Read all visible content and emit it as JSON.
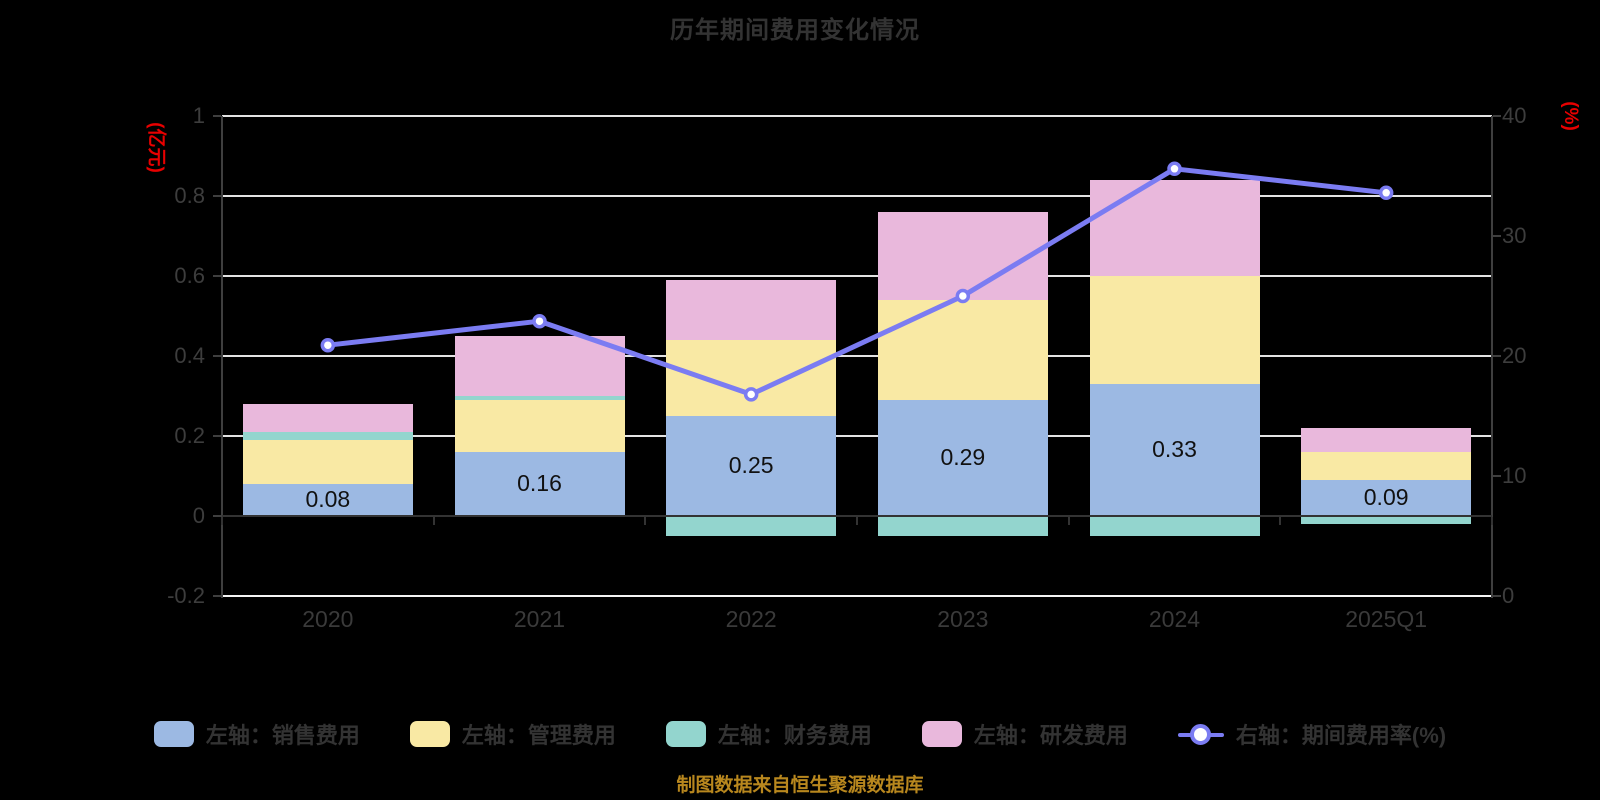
{
  "title": "历年期间费用变化情况",
  "footer": "制图数据来自恒生聚源数据库",
  "left_axis": {
    "name": "(亿元)",
    "min": -0.2,
    "max": 1,
    "ticks": [
      {
        "value": 1,
        "label": "1"
      },
      {
        "value": 0.8,
        "label": "0.8"
      },
      {
        "value": 0.6,
        "label": "0.6"
      },
      {
        "value": 0.4,
        "label": "0.4"
      },
      {
        "value": 0.2,
        "label": "0.2"
      },
      {
        "value": 0,
        "label": "0"
      },
      {
        "value": -0.2,
        "label": "-0.2"
      }
    ]
  },
  "right_axis": {
    "name": "(%)",
    "min": 0,
    "max": 40,
    "ticks": [
      {
        "value": 40,
        "label": "40"
      },
      {
        "value": 30,
        "label": "30"
      },
      {
        "value": 20,
        "label": "20"
      },
      {
        "value": 10,
        "label": "10"
      },
      {
        "value": 0,
        "label": "0"
      }
    ]
  },
  "chart_data": {
    "type": "stacked-bar+line",
    "categories": [
      "2020",
      "2021",
      "2022",
      "2023",
      "2024",
      "2025Q1"
    ],
    "series": [
      {
        "name": "左轴：销售费用",
        "type": "bar",
        "color": "#9cb9e3",
        "labeled": true,
        "values": [
          0.08,
          0.16,
          0.25,
          0.29,
          0.33,
          0.09
        ]
      },
      {
        "name": "左轴：管理费用",
        "type": "bar",
        "color": "#f9e9a4",
        "labeled": false,
        "values": [
          0.11,
          0.13,
          0.19,
          0.25,
          0.27,
          0.07
        ]
      },
      {
        "name": "左轴：财务费用",
        "type": "bar",
        "color": "#93d5ce",
        "labeled": false,
        "values": [
          0.02,
          0.01,
          -0.05,
          -0.05,
          -0.05,
          -0.02
        ]
      },
      {
        "name": "左轴：研发费用",
        "type": "bar",
        "color": "#e9b8dc",
        "labeled": false,
        "values": [
          0.07,
          0.15,
          0.15,
          0.22,
          0.24,
          0.06
        ]
      },
      {
        "name": "右轴：期间费用率(%)",
        "type": "line",
        "color": "#7b7cf2",
        "axis": "right",
        "values": [
          20.9,
          22.9,
          16.8,
          25.0,
          35.6,
          33.6
        ]
      }
    ],
    "legend_position": "bottom",
    "grid": true,
    "colors": {
      "background": "#000000",
      "gridline": "#e3e3e3",
      "axis_line": "#3f3f3f",
      "title_text": "#333333",
      "axis_unit_text": "#e80000",
      "footer_text": "#b8871e",
      "bar_label_text": "#111111"
    }
  }
}
